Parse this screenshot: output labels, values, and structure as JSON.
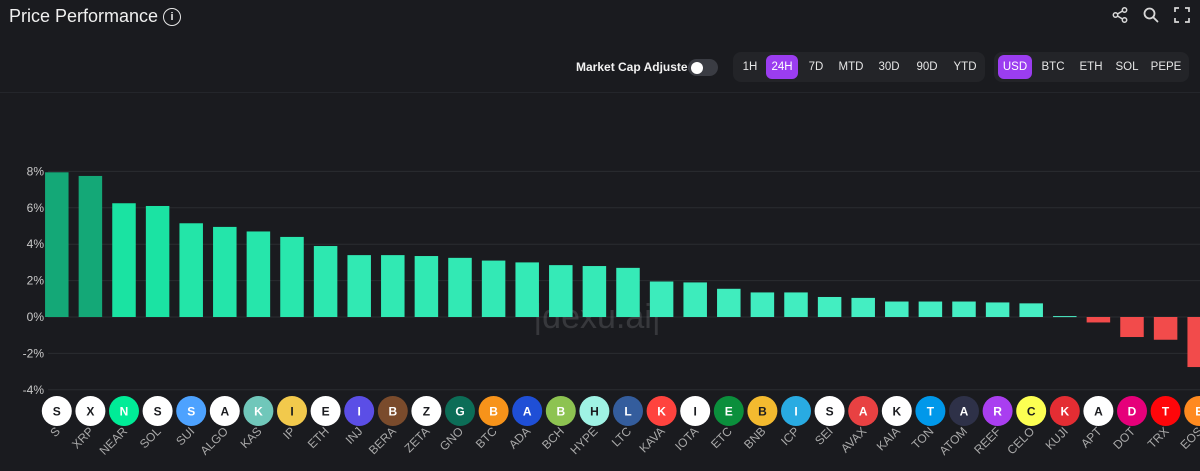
{
  "header": {
    "title": "Price Performance",
    "info_icon": "info-icon",
    "icons": [
      "share-icon",
      "search-icon",
      "fullscreen-icon"
    ]
  },
  "toolbar": {
    "market_cap_label": "Market Cap Adjusted",
    "market_cap_enabled": false,
    "periods": [
      "1H",
      "24H",
      "7D",
      "MTD",
      "30D",
      "90D",
      "YTD"
    ],
    "active_period": "24H",
    "currencies": [
      "USD",
      "BTC",
      "ETH",
      "SOL",
      "PEPE"
    ],
    "active_currency": "USD"
  },
  "watermark": "|dexu.ai|",
  "colors": {
    "accent": "#9b3df0",
    "positive_dark": "#14a877",
    "positive_mid": "#1be7a2",
    "positive_light": "#5bf0c6",
    "negative": "#f24b4b"
  },
  "chart_data": {
    "type": "bar",
    "ylim": [
      -4,
      8.5
    ],
    "yticks": [
      -4,
      -2,
      0,
      2,
      4,
      6,
      8
    ],
    "ytick_labels": [
      "-4%",
      "-2%",
      "0%",
      "2%",
      "4%",
      "6%",
      "8%"
    ],
    "grid": true,
    "categories": [
      "S",
      "XRP",
      "NEAR",
      "SOL",
      "SUI",
      "ALGO",
      "KAS",
      "IP",
      "ETH",
      "INJ",
      "BERA",
      "ZETA",
      "GNO",
      "BTC",
      "ADA",
      "BCH",
      "HYPE",
      "LTC",
      "KAVA",
      "IOTA",
      "ETC",
      "BNB",
      "ICP",
      "SEI",
      "AVAX",
      "KAIA",
      "TON",
      "ATOM",
      "REEF",
      "CELO",
      "KUJI",
      "APT",
      "DOT",
      "TRX",
      "EOS"
    ],
    "values": [
      7.95,
      7.75,
      6.25,
      6.1,
      5.15,
      4.95,
      4.7,
      4.4,
      3.9,
      3.4,
      3.4,
      3.35,
      3.25,
      3.1,
      3.0,
      2.85,
      2.8,
      2.7,
      1.95,
      1.9,
      1.55,
      1.35,
      1.35,
      1.1,
      1.05,
      0.85,
      0.85,
      0.85,
      0.8,
      0.75,
      0.05,
      -0.3,
      -1.1,
      -1.25,
      -2.75
    ],
    "icons": [
      "sonic-icon",
      "xrp-icon",
      "near-icon",
      "solana-icon",
      "sui-icon",
      "algorand-icon",
      "kaspa-icon",
      "story-ip-icon",
      "ethereum-icon",
      "injective-icon",
      "berachain-icon",
      "zetachain-icon",
      "gnosis-icon",
      "bitcoin-icon",
      "cardano-icon",
      "bitcoin-cash-icon",
      "hyperliquid-icon",
      "litecoin-icon",
      "kava-icon",
      "iota-icon",
      "ethereum-classic-icon",
      "bnb-icon",
      "internet-computer-icon",
      "sei-icon",
      "avalanche-icon",
      "kaia-icon",
      "toncoin-icon",
      "cosmos-icon",
      "reef-icon",
      "celo-icon",
      "kujira-icon",
      "aptos-icon",
      "polkadot-icon",
      "tron-icon",
      "eos-icon"
    ],
    "icon_colors": [
      "#ffffff",
      "#ffffff",
      "#00ec97",
      "#ffffff",
      "#4da2ff",
      "#ffffff",
      "#70c7ba",
      "#f2c94c",
      "#ffffff",
      "#5b4ee6",
      "#7a4b2c",
      "#ffffff",
      "#0c6d57",
      "#f7931a",
      "#1f4fd6",
      "#8dc351",
      "#9ff2e4",
      "#345d9d",
      "#ff433e",
      "#ffffff",
      "#0b8f3c",
      "#f3ba2f",
      "#29abe2",
      "#ffffff",
      "#e84142",
      "#ffffff",
      "#0098ea",
      "#2e3148",
      "#a93ef0",
      "#fcff52",
      "#e42d33",
      "#ffffff",
      "#e6007a",
      "#ff060a",
      "#ff8a1f"
    ]
  }
}
